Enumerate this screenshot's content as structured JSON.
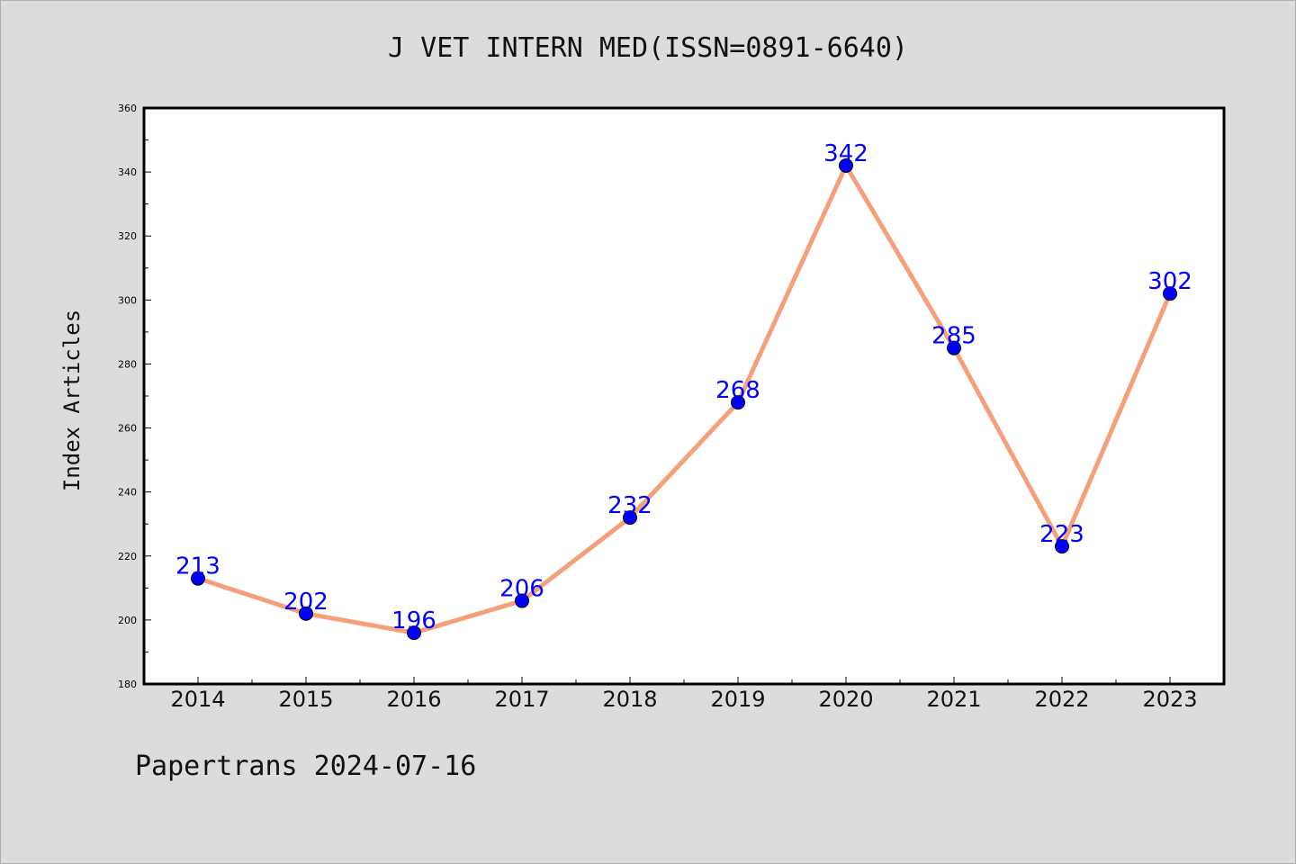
{
  "title": "J VET INTERN MED(ISSN=0891-6640)",
  "footer": "Papertrans 2024-07-16",
  "chart_data": {
    "type": "line",
    "title": "J VET INTERN MED(ISSN=0891-6640)",
    "xlabel": "",
    "ylabel": "Index Articles",
    "x": [
      "2014",
      "2015",
      "2016",
      "2017",
      "2018",
      "2019",
      "2020",
      "2021",
      "2022",
      "2023"
    ],
    "series": [
      {
        "values": [
          213,
          202,
          196,
          206,
          232,
          268,
          342,
          285,
          223,
          302
        ]
      }
    ],
    "ylim": [
      180,
      360
    ],
    "yticks": [
      180,
      200,
      220,
      240,
      260,
      280,
      300,
      320,
      340,
      360
    ],
    "grid": false,
    "line_color": "#f5a07a",
    "marker_color": "#0000ff",
    "label_color": "#0000ff",
    "plot_background": "#ffffff",
    "page_background": "#dcdcdc"
  }
}
